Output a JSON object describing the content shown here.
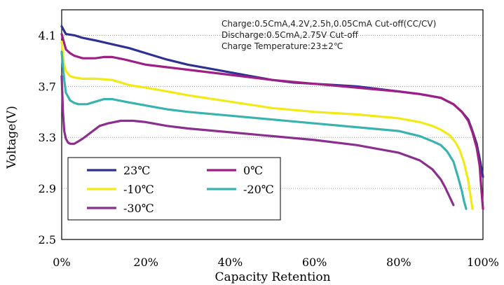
{
  "chart_data": {
    "type": "line",
    "title": "",
    "xlabel": "Capacity Retention",
    "ylabel": "Voltage(V)",
    "x_ticks": [
      "0%",
      "20%",
      "40%",
      "60%",
      "80%",
      "100%"
    ],
    "y_ticks": [
      "4.1",
      "3.7",
      "3.3",
      "2.9",
      "2.5"
    ],
    "xlim": [
      0,
      100
    ],
    "ylim": [
      2.5,
      4.3
    ],
    "grid": "horizontal dotted",
    "legend_position": "bottom-left",
    "annotations": [
      "Charge:0.5CmA,4.2V,2.5h,0.05CmA Cut-off(CC/CV)",
      "Discharge:0.5CmA,2.75V Cut-off",
      "Charge Temperature:23±2℃"
    ],
    "series": [
      {
        "name": "23℃",
        "color": "#2e3192",
        "x": [
          0,
          1,
          3,
          5,
          8,
          12,
          16,
          20,
          25,
          30,
          35,
          40,
          45,
          50,
          55,
          60,
          65,
          70,
          75,
          80,
          85,
          90,
          93,
          95,
          96.5,
          97.5,
          98.5,
          99.3,
          100
        ],
        "y": [
          4.17,
          4.11,
          4.1,
          4.08,
          4.06,
          4.03,
          4.0,
          3.96,
          3.91,
          3.87,
          3.84,
          3.81,
          3.78,
          3.75,
          3.73,
          3.72,
          3.71,
          3.7,
          3.68,
          3.66,
          3.64,
          3.61,
          3.56,
          3.5,
          3.44,
          3.35,
          3.25,
          3.12,
          2.99
        ]
      },
      {
        "name": "0℃",
        "color": "#9e1f86",
        "x": [
          0,
          0.5,
          1,
          2,
          3,
          5,
          8,
          10,
          12,
          15,
          20,
          25,
          30,
          40,
          50,
          60,
          70,
          80,
          85,
          90,
          93,
          95,
          96.5,
          97.5,
          98.5,
          99.2,
          99.6,
          100
        ],
        "y": [
          4.11,
          4.05,
          3.99,
          3.96,
          3.94,
          3.92,
          3.92,
          3.93,
          3.93,
          3.91,
          3.87,
          3.85,
          3.83,
          3.79,
          3.75,
          3.72,
          3.69,
          3.66,
          3.64,
          3.61,
          3.56,
          3.5,
          3.43,
          3.34,
          3.22,
          3.08,
          2.9,
          2.74
        ]
      },
      {
        "name": "-10℃",
        "color": "#f2ea17",
        "x": [
          0,
          0.5,
          1,
          2,
          3,
          5,
          8,
          12,
          16,
          20,
          25,
          30,
          40,
          50,
          60,
          70,
          80,
          85,
          88,
          90,
          92,
          93.5,
          94.5,
          95.5,
          96.5,
          97,
          97.5
        ],
        "y": [
          4.05,
          3.88,
          3.82,
          3.78,
          3.77,
          3.76,
          3.76,
          3.75,
          3.71,
          3.69,
          3.66,
          3.63,
          3.58,
          3.53,
          3.5,
          3.48,
          3.45,
          3.42,
          3.39,
          3.36,
          3.32,
          3.26,
          3.2,
          3.1,
          2.96,
          2.85,
          2.74
        ]
      },
      {
        "name": "-20℃",
        "color": "#3ab3b0",
        "x": [
          0,
          0.3,
          0.6,
          1,
          2,
          3,
          4,
          6,
          8,
          10,
          12,
          15,
          20,
          25,
          30,
          40,
          50,
          60,
          70,
          80,
          85,
          88,
          90,
          91.5,
          93,
          94,
          95,
          95.5,
          96
        ],
        "y": [
          3.97,
          3.85,
          3.75,
          3.65,
          3.59,
          3.57,
          3.56,
          3.56,
          3.58,
          3.6,
          3.6,
          3.58,
          3.55,
          3.52,
          3.5,
          3.47,
          3.44,
          3.41,
          3.38,
          3.35,
          3.31,
          3.27,
          3.24,
          3.19,
          3.11,
          3.0,
          2.88,
          2.8,
          2.74
        ]
      },
      {
        "name": "-30℃",
        "color": "#8b2f8f",
        "x": [
          0,
          0.3,
          0.6,
          1,
          1.5,
          2,
          3,
          4,
          5,
          7,
          9,
          11,
          14,
          17,
          20,
          25,
          30,
          40,
          50,
          60,
          70,
          80,
          85,
          88,
          90,
          91,
          92,
          93
        ],
        "y": [
          3.78,
          3.5,
          3.35,
          3.29,
          3.26,
          3.25,
          3.25,
          3.27,
          3.29,
          3.34,
          3.39,
          3.41,
          3.43,
          3.43,
          3.42,
          3.39,
          3.37,
          3.34,
          3.31,
          3.28,
          3.24,
          3.18,
          3.12,
          3.05,
          2.97,
          2.91,
          2.84,
          2.77
        ]
      }
    ]
  }
}
